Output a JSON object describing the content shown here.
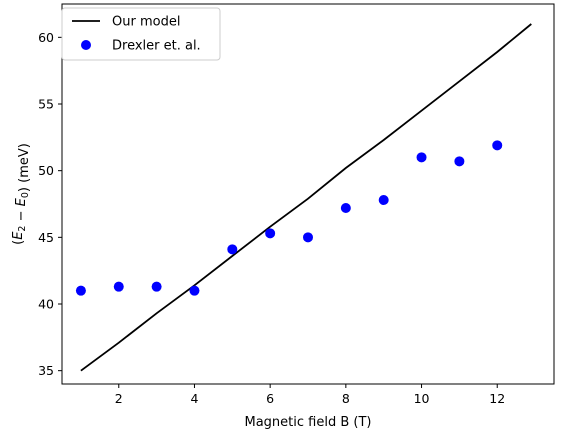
{
  "chart_data": {
    "type": "line",
    "xlabel": "Magnetic field B (T)",
    "ylabel": "(E₂ − E₀) (meV)",
    "xlim": [
      0.5,
      13.5
    ],
    "ylim": [
      34,
      62.5
    ],
    "x_ticks": [
      2,
      4,
      6,
      8,
      10,
      12
    ],
    "y_ticks": [
      35,
      40,
      45,
      50,
      55,
      60
    ],
    "legend_position": "top-left",
    "grid": false,
    "series": [
      {
        "name": "Our model",
        "type": "line",
        "color": "#000000",
        "x": [
          1,
          2,
          3,
          4,
          5,
          6,
          7,
          8,
          9,
          10,
          11,
          12,
          12.9
        ],
        "y": [
          35.0,
          37.1,
          39.3,
          41.4,
          43.6,
          45.8,
          47.9,
          50.2,
          52.3,
          54.5,
          56.7,
          58.9,
          61.0
        ]
      },
      {
        "name": "Drexler et. al.",
        "type": "scatter",
        "color": "#0000ff",
        "x": [
          1,
          2,
          3,
          4,
          5,
          6,
          7,
          8,
          9,
          10,
          11,
          12
        ],
        "y": [
          41.0,
          41.3,
          41.3,
          41.0,
          44.1,
          45.3,
          45.0,
          47.2,
          47.8,
          51.0,
          50.7,
          51.9
        ]
      }
    ]
  }
}
